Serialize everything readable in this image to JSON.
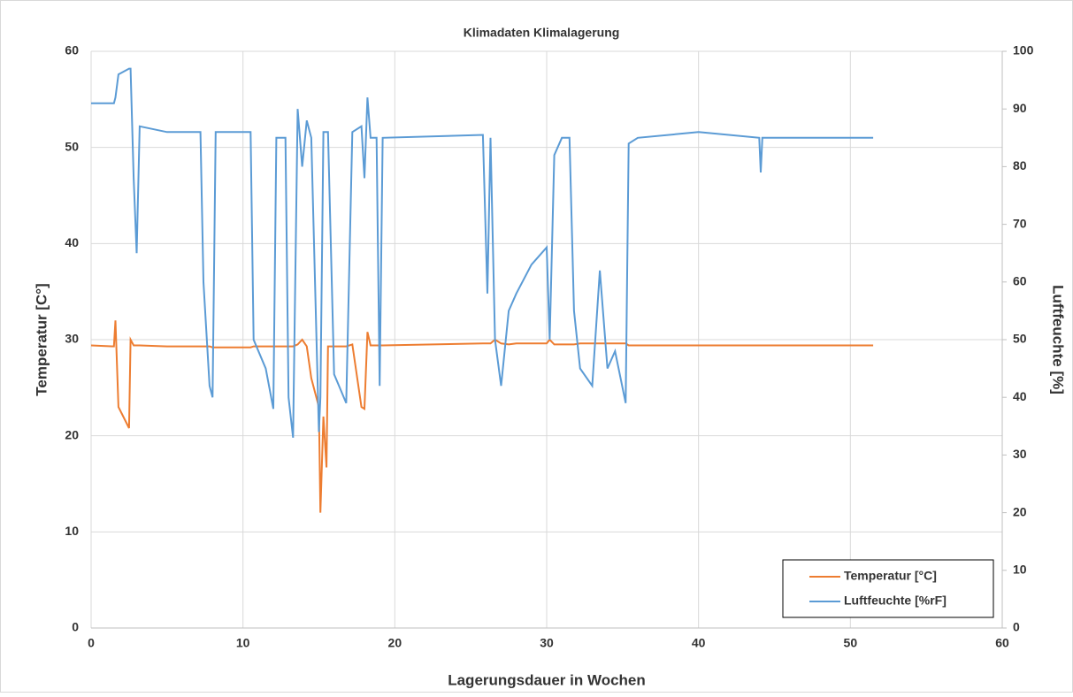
{
  "chart_data": {
    "type": "line",
    "title": "Klimadaten Klimalagerung",
    "x_label": "Lagerungsdauer in Wochen",
    "y_label": "Temperatur [C°]",
    "y2_label": "Luftfeuchte [%]",
    "x": [
      0,
      1.5,
      1.6,
      1.8,
      2.5,
      2.6,
      2.8,
      3.0,
      3.2,
      5,
      7.2,
      7.4,
      7.8,
      8.0,
      8.2,
      10.5,
      10.7,
      11.5,
      12,
      12.2,
      12.8,
      13.0,
      13.3,
      13.6,
      13.9,
      14.2,
      14.5,
      15,
      15.1,
      15.3,
      15.5,
      15.6,
      16.0,
      16.8,
      17.2,
      17.8,
      18.0,
      18.2,
      18.4,
      18.8,
      19.0,
      19.2,
      25.8,
      26.1,
      26.3,
      26.6,
      27,
      27.5,
      28,
      29,
      30,
      30.2,
      30.5,
      31.0,
      31.5,
      31.8,
      32.2,
      33,
      33.5,
      34,
      34.5,
      35.2,
      35.4,
      36,
      40,
      44,
      44.1,
      44.2,
      48,
      51.5
    ],
    "series": [
      {
        "name": "Temperatur [°C]",
        "color": "#ed7d31",
        "values": [
          29.4,
          29.3,
          32,
          23,
          20.8,
          30,
          29.4,
          29.4,
          29.4,
          29.3,
          29.3,
          29.3,
          29.3,
          29.2,
          29.2,
          29.2,
          29.3,
          29.3,
          29.3,
          29.3,
          29.3,
          29.3,
          29.3,
          29.5,
          30,
          29.3,
          26,
          23,
          12,
          22,
          16.7,
          29.3,
          29.3,
          29.3,
          29.5,
          23,
          22.8,
          30.8,
          29.4,
          29.4,
          29.4,
          29.4,
          29.6,
          29.6,
          29.6,
          30,
          29.6,
          29.5,
          29.6,
          29.6,
          29.6,
          30,
          29.5,
          29.5,
          29.5,
          29.5,
          29.6,
          29.6,
          29.6,
          29.6,
          29.6,
          29.6,
          29.4,
          29.4,
          29.4,
          29.4,
          29.4,
          29.4,
          29.4,
          29.4
        ]
      },
      {
        "name": "Luftfeuchte [%rF]",
        "color": "#5b9bd5",
        "axis": "y2",
        "values": [
          91,
          91,
          92,
          96,
          97,
          97,
          78,
          65,
          87,
          86,
          86,
          60,
          42,
          40,
          86,
          86,
          50,
          45,
          38,
          85,
          85,
          40,
          33,
          90,
          80,
          88,
          85,
          34,
          40,
          86,
          86,
          86,
          44,
          39,
          86,
          87,
          78,
          92,
          85,
          85,
          42,
          85,
          85.5,
          58,
          85,
          50,
          42,
          55,
          58,
          63,
          66,
          50,
          82,
          85,
          85,
          55,
          45,
          42,
          62,
          45,
          48,
          39,
          84,
          85,
          86,
          85,
          79,
          85,
          85,
          85
        ]
      }
    ],
    "xlim": [
      0,
      60
    ],
    "xticks": [
      0,
      10,
      20,
      30,
      40,
      50,
      60
    ],
    "ylim": [
      0,
      60
    ],
    "yticks": [
      0,
      10,
      20,
      30,
      40,
      50,
      60
    ],
    "y2lim": [
      0,
      100
    ],
    "y2ticks": [
      0,
      10,
      20,
      30,
      40,
      50,
      60,
      70,
      80,
      90,
      100
    ],
    "grid": true,
    "legend": "lower right"
  }
}
